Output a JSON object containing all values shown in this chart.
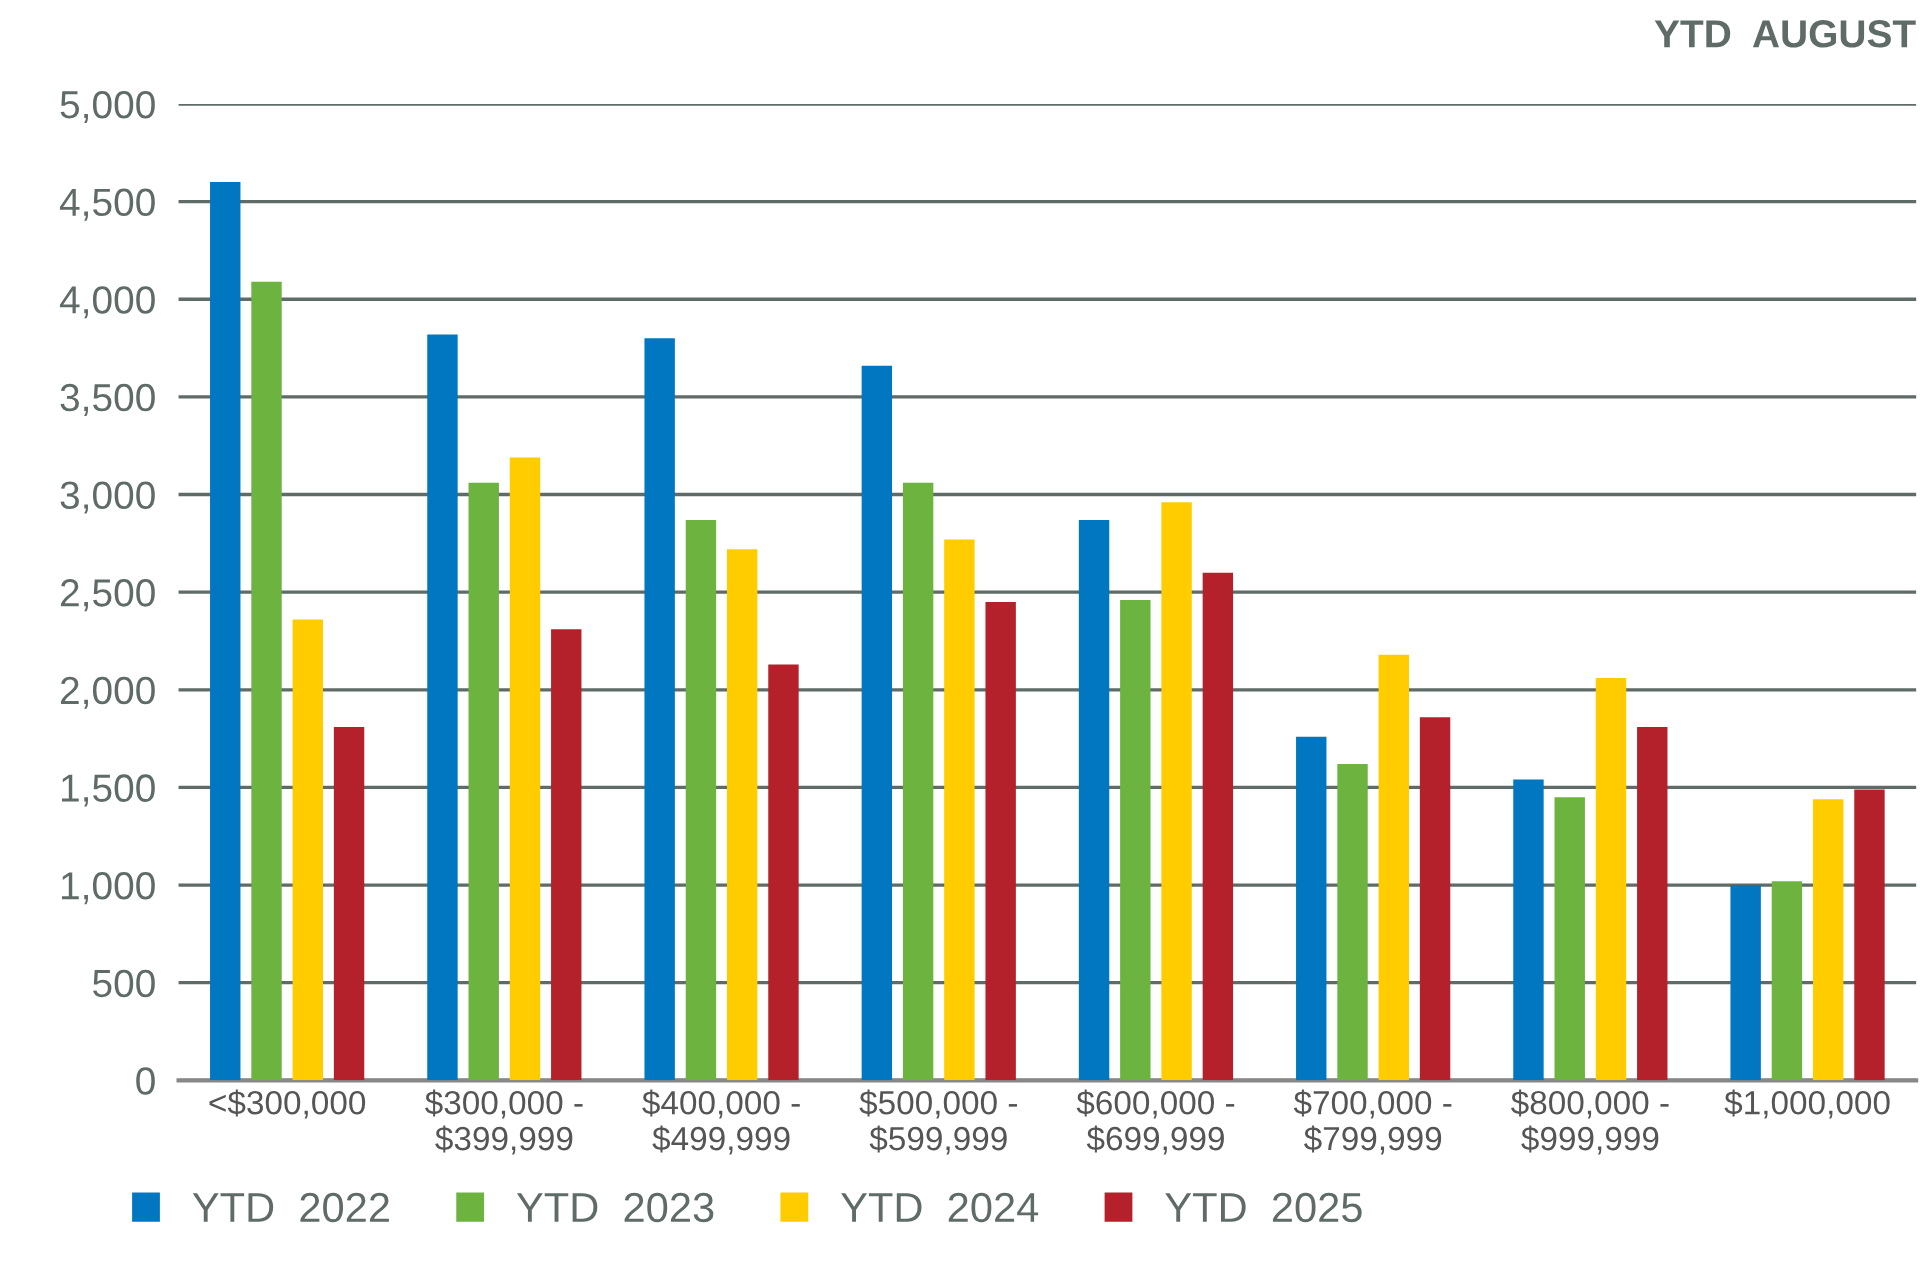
{
  "chart_data": {
    "type": "bar",
    "title": "YTD  AUGUST",
    "categories": [
      "<$300,000",
      "$300,000 -\n$399,999",
      "$400,000 -\n$499,999",
      "$500,000 -\n$599,999",
      "$600,000 -\n$699,999",
      "$700,000 -\n$799,999",
      "$800,000 -\n$999,999",
      "$1,000,000"
    ],
    "series": [
      {
        "name": "YTD  2022",
        "color": "#0077c0",
        "values": [
          4600,
          3820,
          3800,
          3660,
          2870,
          1760,
          1540,
          1000
        ]
      },
      {
        "name": "YTD  2023",
        "color": "#6db33f",
        "values": [
          4090,
          3060,
          2870,
          3060,
          2460,
          1620,
          1450,
          1020
        ]
      },
      {
        "name": "YTD  2024",
        "color": "#ffcc00",
        "values": [
          2360,
          3190,
          2720,
          2770,
          2960,
          2180,
          2060,
          1440
        ]
      },
      {
        "name": "YTD  2025",
        "color": "#b5212b",
        "values": [
          1810,
          2310,
          2130,
          2450,
          2600,
          1860,
          1810,
          1490
        ]
      }
    ],
    "ylim": [
      0,
      5000
    ],
    "yticks": [
      {
        "value": 0,
        "label": "0"
      },
      {
        "value": 500,
        "label": "500"
      },
      {
        "value": 1000,
        "label": "1,000"
      },
      {
        "value": 1500,
        "label": "1,500"
      },
      {
        "value": 2000,
        "label": "2,000"
      },
      {
        "value": 2500,
        "label": "2,500"
      },
      {
        "value": 3000,
        "label": "3,000"
      },
      {
        "value": 3500,
        "label": "3,500"
      },
      {
        "value": 4000,
        "label": "4,000"
      },
      {
        "value": 4500,
        "label": "4,500"
      },
      {
        "value": 5000,
        "label": "5,000"
      }
    ],
    "grid": "y",
    "legend": "bottom"
  }
}
